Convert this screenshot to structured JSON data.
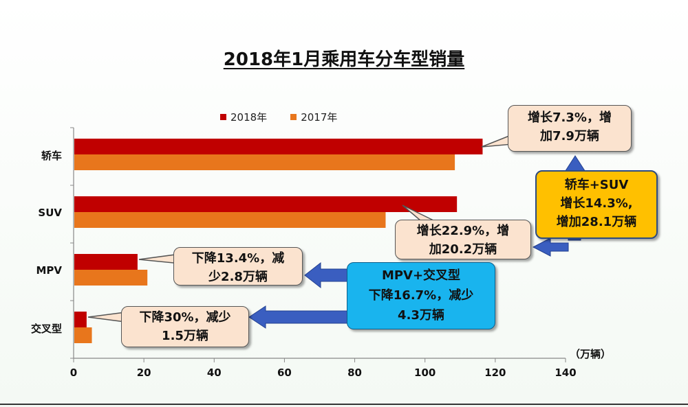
{
  "title": "2018年1月乘用车分车型销量",
  "colors": {
    "s2018": "#c00000",
    "s2017": "#e8761c",
    "arrow": "#3a5ec0"
  },
  "chart_data": {
    "type": "bar",
    "orientation": "horizontal",
    "categories": [
      "轿车",
      "SUV",
      "MPV",
      "交叉型"
    ],
    "series": [
      {
        "name": "2018年",
        "values": [
          116.2,
          108.9,
          18.0,
          3.5
        ]
      },
      {
        "name": "2017年",
        "values": [
          108.3,
          88.6,
          20.8,
          5.0
        ]
      }
    ],
    "xlim": [
      0,
      140
    ],
    "xticks": [
      0,
      20,
      40,
      60,
      80,
      100,
      120,
      140
    ],
    "xunit": "（万辆）"
  },
  "callouts": {
    "sedan": [
      "增长7.3%，增",
      "加7.9万辆"
    ],
    "suv": [
      "增长22.9%，增",
      "加20.2万辆"
    ],
    "mpv": [
      "下降13.4%，减",
      "少2.8万辆"
    ],
    "cross": [
      "下降30%，减少",
      "1.5万辆"
    ],
    "mpv_cross": [
      "MPV+交叉型",
      "下降16.7%，减少",
      "4.3万辆"
    ],
    "sedan_suv": [
      "轿车+SUV",
      "增长14.3%,",
      "增加28.1万辆"
    ]
  }
}
